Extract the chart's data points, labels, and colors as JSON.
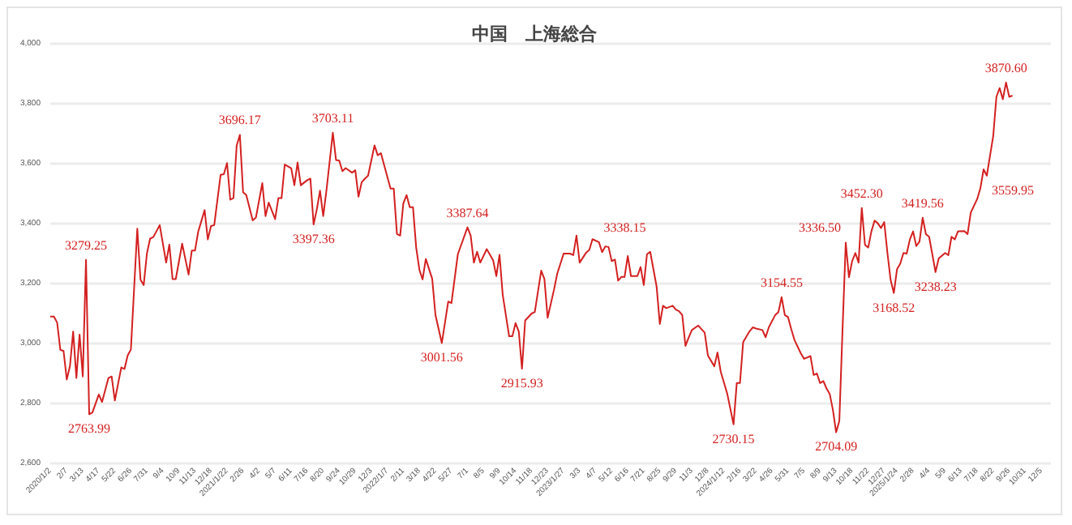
{
  "chart_data": {
    "type": "line",
    "title": "中国　上海総合",
    "x": [
      "2020-01-02",
      "2020-01-10",
      "2020-01-17",
      "2020-01-24",
      "2020-01-31",
      "2020-02-07",
      "2020-02-14",
      "2020-02-21",
      "2020-02-28",
      "2020-03-06",
      "2020-03-13",
      "2020-03-20",
      "2020-03-27",
      "2020-04-03",
      "2020-04-17",
      "2020-04-24",
      "2020-05-08",
      "2020-05-15",
      "2020-05-22",
      "2020-06-05",
      "2020-06-12",
      "2020-06-19",
      "2020-06-26",
      "2020-07-10",
      "2020-07-17",
      "2020-07-24",
      "2020-07-31",
      "2020-08-07",
      "2020-08-14",
      "2020-08-28",
      "2020-09-11",
      "2020-09-18",
      "2020-09-25",
      "2020-10-02",
      "2020-10-16",
      "2020-10-30",
      "2020-11-06",
      "2020-11-13",
      "2020-11-20",
      "2020-12-04",
      "2020-12-11",
      "2020-12-18",
      "2020-12-25",
      "2021-01-08",
      "2021-01-15",
      "2021-01-22",
      "2021-01-29",
      "2021-02-05",
      "2021-02-12",
      "2021-02-19",
      "2021-02-26",
      "2021-03-05",
      "2021-03-19",
      "2021-03-26",
      "2021-04-09",
      "2021-04-16",
      "2021-04-23",
      "2021-05-07",
      "2021-05-14",
      "2021-05-21",
      "2021-05-28",
      "2021-06-11",
      "2021-06-18",
      "2021-06-25",
      "2021-07-02",
      "2021-07-16",
      "2021-07-23",
      "2021-07-30",
      "2021-08-06",
      "2021-08-13",
      "2021-08-20",
      "2021-08-27",
      "2021-09-10",
      "2021-09-17",
      "2021-09-24",
      "2021-10-01",
      "2021-10-08",
      "2021-10-22",
      "2021-10-29",
      "2021-11-05",
      "2021-11-12",
      "2021-11-19",
      "2021-11-26",
      "2021-12-10",
      "2021-12-17",
      "2021-12-24",
      "2021-12-31",
      "2022-01-14",
      "2022-01-21",
      "2022-01-28",
      "2022-02-04",
      "2022-02-11",
      "2022-02-18",
      "2022-02-25",
      "2022-03-04",
      "2022-03-11",
      "2022-03-18",
      "2022-03-25",
      "2022-04-01",
      "2022-04-15",
      "2022-04-22",
      "2022-05-06",
      "2022-05-20",
      "2022-05-27",
      "2022-06-10",
      "2022-07-01",
      "2022-07-08",
      "2022-07-15",
      "2022-07-22",
      "2022-07-29",
      "2022-08-12",
      "2022-08-26",
      "2022-09-02",
      "2022-09-09",
      "2022-09-16",
      "2022-09-30",
      "2022-10-07",
      "2022-10-14",
      "2022-10-21",
      "2022-10-28",
      "2022-11-04",
      "2022-11-18",
      "2022-11-25",
      "2022-12-09",
      "2022-12-16",
      "2022-12-23",
      "2023-01-06",
      "2023-01-13",
      "2023-01-27",
      "2023-02-10",
      "2023-02-17",
      "2023-02-24",
      "2023-03-03",
      "2023-03-17",
      "2023-03-24",
      "2023-03-31",
      "2023-04-14",
      "2023-04-21",
      "2023-04-28",
      "2023-05-05",
      "2023-05-12",
      "2023-05-19",
      "2023-05-26",
      "2023-06-02",
      "2023-06-09",
      "2023-06-16",
      "2023-06-23",
      "2023-06-30",
      "2023-07-07",
      "2023-07-14",
      "2023-07-21",
      "2023-07-28",
      "2023-08-04",
      "2023-08-18",
      "2023-08-25",
      "2023-09-01",
      "2023-09-08",
      "2023-09-22",
      "2023-09-29",
      "2023-10-06",
      "2023-10-13",
      "2023-10-20",
      "2023-10-27",
      "2023-11-03",
      "2023-11-17",
      "2023-12-01",
      "2023-12-08",
      "2023-12-22",
      "2023-12-29",
      "2024-01-05",
      "2024-01-19",
      "2024-02-02",
      "2024-02-09",
      "2024-02-16",
      "2024-02-23",
      "2024-03-08",
      "2024-03-15",
      "2024-03-22",
      "2024-04-05",
      "2024-04-12",
      "2024-04-19",
      "2024-05-03",
      "2024-05-10",
      "2024-05-17",
      "2024-05-24",
      "2024-05-31",
      "2024-06-07",
      "2024-06-14",
      "2024-06-28",
      "2024-07-05",
      "2024-07-19",
      "2024-07-26",
      "2024-08-02",
      "2024-08-09",
      "2024-08-16",
      "2024-08-23",
      "2024-08-30",
      "2024-09-06",
      "2024-09-13",
      "2024-09-20",
      "2024-09-27",
      "2024-10-04",
      "2024-10-11",
      "2024-10-18",
      "2024-10-25",
      "2024-11-01",
      "2024-11-08",
      "2024-11-15",
      "2024-11-22",
      "2024-11-29",
      "2024-12-06",
      "2024-12-13",
      "2024-12-20",
      "2024-12-27",
      "2025-01-03",
      "2025-01-10",
      "2025-01-17",
      "2025-01-24",
      "2025-01-31",
      "2025-02-07",
      "2025-02-14",
      "2025-02-21",
      "2025-02-28",
      "2025-03-07",
      "2025-03-14",
      "2025-03-21",
      "2025-03-28",
      "2025-04-04",
      "2025-04-11",
      "2025-04-18",
      "2025-04-25",
      "2025-05-09",
      "2025-05-16",
      "2025-05-23",
      "2025-05-30",
      "2025-06-06",
      "2025-06-20",
      "2025-06-27",
      "2025-07-04",
      "2025-07-18",
      "2025-07-25",
      "2025-08-01",
      "2025-08-08",
      "2025-08-22",
      "2025-08-29",
      "2025-09-05",
      "2025-09-12",
      "2025-09-19",
      "2025-09-26",
      "2025-10-03"
    ],
    "values": [
      3090,
      3090,
      3070,
      2979,
      2975,
      2880,
      2925,
      3040,
      2885,
      3030,
      2890,
      3279.25,
      2763.99,
      2770,
      2830,
      2805,
      2885,
      2890,
      2810,
      2920,
      2915,
      2960,
      2980,
      3383,
      3213,
      3195,
      3300,
      3350,
      3355,
      3395,
      3270,
      3330,
      3215,
      3215,
      3333,
      3230,
      3310,
      3310,
      3373,
      3445,
      3347,
      3392,
      3395,
      3563,
      3565,
      3602,
      3480,
      3485,
      3660,
      3696.17,
      3505,
      3495,
      3411,
      3420,
      3535,
      3425,
      3470,
      3415,
      3485,
      3485,
      3597,
      3585,
      3528,
      3604,
      3528,
      3545,
      3550,
      3397.36,
      3447,
      3510,
      3425,
      3510,
      3703.11,
      3612,
      3610,
      3575,
      3585,
      3570,
      3578,
      3490,
      3538,
      3550,
      3560,
      3661,
      3628,
      3635,
      3595,
      3517,
      3517,
      3365,
      3360,
      3468,
      3495,
      3455,
      3455,
      3320,
      3246,
      3214,
      3282,
      3216,
      3096,
      3001.56,
      3140,
      3135,
      3298,
      3387.64,
      3360,
      3270,
      3306,
      3270,
      3315,
      3278,
      3225,
      3296,
      3162,
      3024,
      3024,
      3068,
      3040,
      2915.93,
      3077,
      3100,
      3105,
      3243,
      3215,
      3086,
      3180,
      3233,
      3300,
      3300,
      3295,
      3360,
      3270,
      3303,
      3312,
      3348,
      3338.15,
      3305,
      3324,
      3322,
      3275,
      3280,
      3210,
      3222,
      3222,
      3292,
      3225,
      3225,
      3225,
      3255,
      3195,
      3298,
      3306,
      3190,
      3065,
      3126,
      3118,
      3126,
      3113,
      3108,
      3095,
      2992,
      3020,
      3045,
      3060,
      3036,
      2960,
      2924,
      2970,
      2906,
      2834,
      2730.15,
      2868,
      2868,
      3005,
      3041,
      3054,
      3050,
      3045,
      3021,
      3054,
      3095,
      3105,
      3154.55,
      3095,
      3088,
      3048,
      3012,
      2967,
      2949,
      2958,
      2895,
      2900,
      2868,
      2875,
      2850,
      2832,
      2778,
      2704.09,
      2742,
      3048,
      3336.5,
      3221,
      3275,
      3302,
      3270,
      3452.3,
      3329,
      3320,
      3374,
      3410,
      3401,
      3385,
      3405,
      3302,
      3212,
      3168.52,
      3248,
      3266,
      3302,
      3300,
      3347,
      3374,
      3325,
      3340,
      3419.56,
      3365,
      3356,
      3298,
      3238.23,
      3284,
      3302,
      3295,
      3356,
      3347,
      3374,
      3375,
      3365,
      3437,
      3482,
      3518,
      3581,
      3559.95,
      3692,
      3823,
      3852,
      3815,
      3870.6,
      3823,
      3827
    ],
    "color": "#d42020",
    "annotations": [
      {
        "text": "3279.25",
        "x": "2020-03-20",
        "y": 3279.25
      },
      {
        "text": "2763.99",
        "x": "2020-03-27",
        "y": 2763.99
      },
      {
        "text": "3696.17",
        "x": "2021-02-19",
        "y": 3696.17
      },
      {
        "text": "3397.36",
        "x": "2021-07-30",
        "y": 3397.36
      },
      {
        "text": "3703.11",
        "x": "2021-09-10",
        "y": 3703.11
      },
      {
        "text": "3001.56",
        "x": "2022-05-06",
        "y": 3001.56
      },
      {
        "text": "3387.64",
        "x": "2022-07-01",
        "y": 3387.64
      },
      {
        "text": "2915.93",
        "x": "2022-10-28",
        "y": 2915.93
      },
      {
        "text": "3338.15",
        "x": "2023-04-14",
        "y": 3338.15
      },
      {
        "text": "2730.15",
        "x": "2024-02-02",
        "y": 2730.15
      },
      {
        "text": "3154.55",
        "x": "2024-05-17",
        "y": 3154.55
      },
      {
        "text": "2704.09",
        "x": "2024-09-13",
        "y": 2704.09
      },
      {
        "text": "3336.50",
        "x": "2024-10-04",
        "y": 3336.5
      },
      {
        "text": "3452.30",
        "x": "2024-11-08",
        "y": 3452.3
      },
      {
        "text": "3168.52",
        "x": "2025-01-17",
        "y": 3168.52
      },
      {
        "text": "3419.56",
        "x": "2025-03-21",
        "y": 3419.56
      },
      {
        "text": "3238.23",
        "x": "2025-04-18",
        "y": 3238.23
      },
      {
        "text": "3559.95",
        "x": "2025-08-08",
        "y": 3559.95
      },
      {
        "text": "3870.60",
        "x": "2025-09-19",
        "y": 3870.6
      }
    ],
    "xlim": [
      "2020-01-02",
      "2025-12-26"
    ],
    "xticks": [
      {
        "value": "2020-01-02",
        "label": "2020/1/2"
      },
      {
        "value": "2020-02-07",
        "label": "2/7"
      },
      {
        "value": "2020-03-13",
        "label": "3/13"
      },
      {
        "value": "2020-04-17",
        "label": "4/17"
      },
      {
        "value": "2020-05-22",
        "label": "5/22"
      },
      {
        "value": "2020-06-26",
        "label": "6/26"
      },
      {
        "value": "2020-07-31",
        "label": "7/31"
      },
      {
        "value": "2020-09-04",
        "label": "9/4"
      },
      {
        "value": "2020-10-09",
        "label": "10/9"
      },
      {
        "value": "2020-11-13",
        "label": "11/13"
      },
      {
        "value": "2020-12-18",
        "label": "12/18"
      },
      {
        "value": "2021-01-22",
        "label": "2021/1/22"
      },
      {
        "value": "2021-02-26",
        "label": "2/26"
      },
      {
        "value": "2021-04-02",
        "label": "4/2"
      },
      {
        "value": "2021-05-07",
        "label": "5/7"
      },
      {
        "value": "2021-06-11",
        "label": "6/11"
      },
      {
        "value": "2021-07-16",
        "label": "7/16"
      },
      {
        "value": "2021-08-20",
        "label": "8/20"
      },
      {
        "value": "2021-09-24",
        "label": "9/24"
      },
      {
        "value": "2021-10-29",
        "label": "10/29"
      },
      {
        "value": "2021-12-03",
        "label": "12/3"
      },
      {
        "value": "2022-01-07",
        "label": "2022/1/7"
      },
      {
        "value": "2022-02-11",
        "label": "2/11"
      },
      {
        "value": "2022-03-18",
        "label": "3/18"
      },
      {
        "value": "2022-04-22",
        "label": "4/22"
      },
      {
        "value": "2022-05-27",
        "label": "5/27"
      },
      {
        "value": "2022-07-01",
        "label": "7/1"
      },
      {
        "value": "2022-08-05",
        "label": "8/5"
      },
      {
        "value": "2022-09-09",
        "label": "9/9"
      },
      {
        "value": "2022-10-14",
        "label": "10/14"
      },
      {
        "value": "2022-11-18",
        "label": "11/18"
      },
      {
        "value": "2022-12-23",
        "label": "12/23"
      },
      {
        "value": "2023-01-27",
        "label": "2023/1/27"
      },
      {
        "value": "2023-03-03",
        "label": "3/3"
      },
      {
        "value": "2023-04-07",
        "label": "4/7"
      },
      {
        "value": "2023-05-12",
        "label": "5/12"
      },
      {
        "value": "2023-06-16",
        "label": "6/16"
      },
      {
        "value": "2023-07-21",
        "label": "7/21"
      },
      {
        "value": "2023-08-25",
        "label": "8/25"
      },
      {
        "value": "2023-09-29",
        "label": "9/29"
      },
      {
        "value": "2023-11-03",
        "label": "11/3"
      },
      {
        "value": "2023-12-08",
        "label": "12/8"
      },
      {
        "value": "2024-01-12",
        "label": "2024/1/12"
      },
      {
        "value": "2024-02-16",
        "label": "2/16"
      },
      {
        "value": "2024-03-22",
        "label": "3/22"
      },
      {
        "value": "2024-04-26",
        "label": "4/26"
      },
      {
        "value": "2024-05-31",
        "label": "5/31"
      },
      {
        "value": "2024-07-05",
        "label": "7/5"
      },
      {
        "value": "2024-08-09",
        "label": "8/9"
      },
      {
        "value": "2024-09-13",
        "label": "9/13"
      },
      {
        "value": "2024-10-18",
        "label": "10/18"
      },
      {
        "value": "2024-11-22",
        "label": "11/22"
      },
      {
        "value": "2024-12-27",
        "label": "12/27"
      },
      {
        "value": "2025-01-24",
        "label": "2025/1/24"
      },
      {
        "value": "2025-02-28",
        "label": "2/28"
      },
      {
        "value": "2025-04-04",
        "label": "4/4"
      },
      {
        "value": "2025-05-09",
        "label": "5/9"
      },
      {
        "value": "2025-06-13",
        "label": "6/13"
      },
      {
        "value": "2025-07-18",
        "label": "7/18"
      },
      {
        "value": "2025-08-22",
        "label": "8/22"
      },
      {
        "value": "2025-09-26",
        "label": "9/26"
      },
      {
        "value": "2025-10-31",
        "label": "10/31"
      },
      {
        "value": "2025-12-05",
        "label": "12/5"
      }
    ],
    "ylim": [
      2600,
      4000
    ],
    "yticks": [
      {
        "value": 2600,
        "label": "2,600"
      },
      {
        "value": 2800,
        "label": "2,800"
      },
      {
        "value": 3000,
        "label": "3,000"
      },
      {
        "value": 3200,
        "label": "3,200"
      },
      {
        "value": 3400,
        "label": "3,400"
      },
      {
        "value": 3600,
        "label": "3,600"
      },
      {
        "value": 3800,
        "label": "3,800"
      },
      {
        "value": 4000,
        "label": "4,000"
      }
    ],
    "grid": "y",
    "line_style": "solid"
  }
}
